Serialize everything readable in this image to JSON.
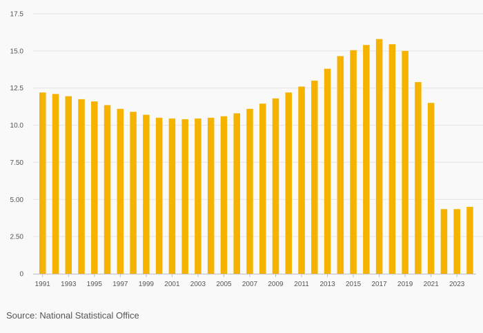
{
  "chart_data": {
    "type": "bar",
    "title": "",
    "xlabel": "",
    "ylabel": "",
    "ylim": [
      0,
      17.5
    ],
    "y_ticks": [
      0,
      2.5,
      5,
      7.5,
      10,
      12.5,
      15,
      17.5
    ],
    "y_tick_labels": [
      "0",
      "2.50",
      "5.00",
      "7.50",
      "10.0",
      "12.5",
      "15.0",
      "17.5"
    ],
    "categories": [
      "1991",
      "1992",
      "1993",
      "1994",
      "1995",
      "1996",
      "1997",
      "1998",
      "1999",
      "2000",
      "2001",
      "2002",
      "2003",
      "2004",
      "2005",
      "2006",
      "2007",
      "2008",
      "2009",
      "2010",
      "2011",
      "2012",
      "2013",
      "2014",
      "2015",
      "2016",
      "2017",
      "2018",
      "2019",
      "2020",
      "2021",
      "2022",
      "2023",
      "2024"
    ],
    "x_tick_labels": [
      "1991",
      "1993",
      "1995",
      "1997",
      "1999",
      "2001",
      "2003",
      "2005",
      "2007",
      "2009",
      "2011",
      "2013",
      "2015",
      "2017",
      "2019",
      "2021",
      "2023"
    ],
    "values": [
      12.2,
      12.1,
      11.95,
      11.75,
      11.6,
      11.35,
      11.1,
      10.9,
      10.7,
      10.5,
      10.45,
      10.4,
      10.45,
      10.5,
      10.6,
      10.8,
      11.1,
      11.45,
      11.8,
      12.2,
      12.6,
      13.0,
      13.8,
      14.65,
      15.05,
      15.4,
      15.8,
      15.45,
      15.0,
      12.9,
      11.5,
      4.35,
      4.35,
      4.5
    ],
    "bar_color": "#f5b300",
    "grid_color": "#e4e4e4",
    "axis_color": "#bdbdbd",
    "grid": true,
    "legend": "none"
  },
  "source": "Source: National Statistical Office"
}
